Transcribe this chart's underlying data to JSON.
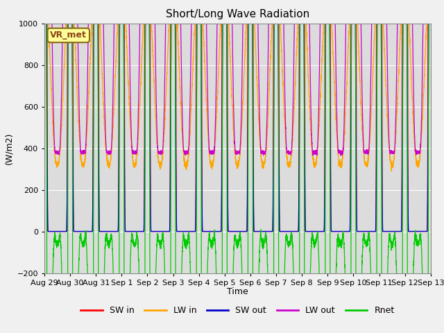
{
  "title": "Short/Long Wave Radiation",
  "ylabel": "(W/m2)",
  "xlabel": "Time",
  "ylim": [
    -200,
    1000
  ],
  "yticks": [
    -200,
    0,
    200,
    400,
    600,
    800,
    1000
  ],
  "bg_color": "#dcdcdc",
  "fig_color": "#f0f0f0",
  "label_box": "VR_met",
  "series": {
    "SW_in": {
      "color": "#ff0000",
      "label": "SW in"
    },
    "LW_in": {
      "color": "#ffa500",
      "label": "LW in"
    },
    "SW_out": {
      "color": "#0000cc",
      "label": "SW out"
    },
    "LW_out": {
      "color": "#cc00cc",
      "label": "LW out"
    },
    "Rnet": {
      "color": "#00cc00",
      "label": "Rnet"
    }
  },
  "xtick_labels": [
    "Aug 29",
    "Aug 30",
    "Aug 31",
    "Sep 1",
    "Sep 2",
    "Sep 3",
    "Sep 4",
    "Sep 5",
    "Sep 6",
    "Sep 7",
    "Sep 8",
    "Sep 9",
    "Sep 10",
    "Sep 11",
    "Sep 12",
    "Sep 13"
  ],
  "n_days": 15,
  "pts_per_day": 288,
  "SW_in_peaks": [
    920,
    920,
    895,
    950,
    920,
    860,
    860,
    900,
    880,
    890,
    860,
    860,
    840,
    840,
    850
  ],
  "LW_in_base": 320,
  "LW_in_amplitude": 60,
  "LW_out_night": 380,
  "LW_out_day_add": 200,
  "LW_out_spike_add": 50,
  "SW_out_peak": 160,
  "Rnet_night": -80
}
